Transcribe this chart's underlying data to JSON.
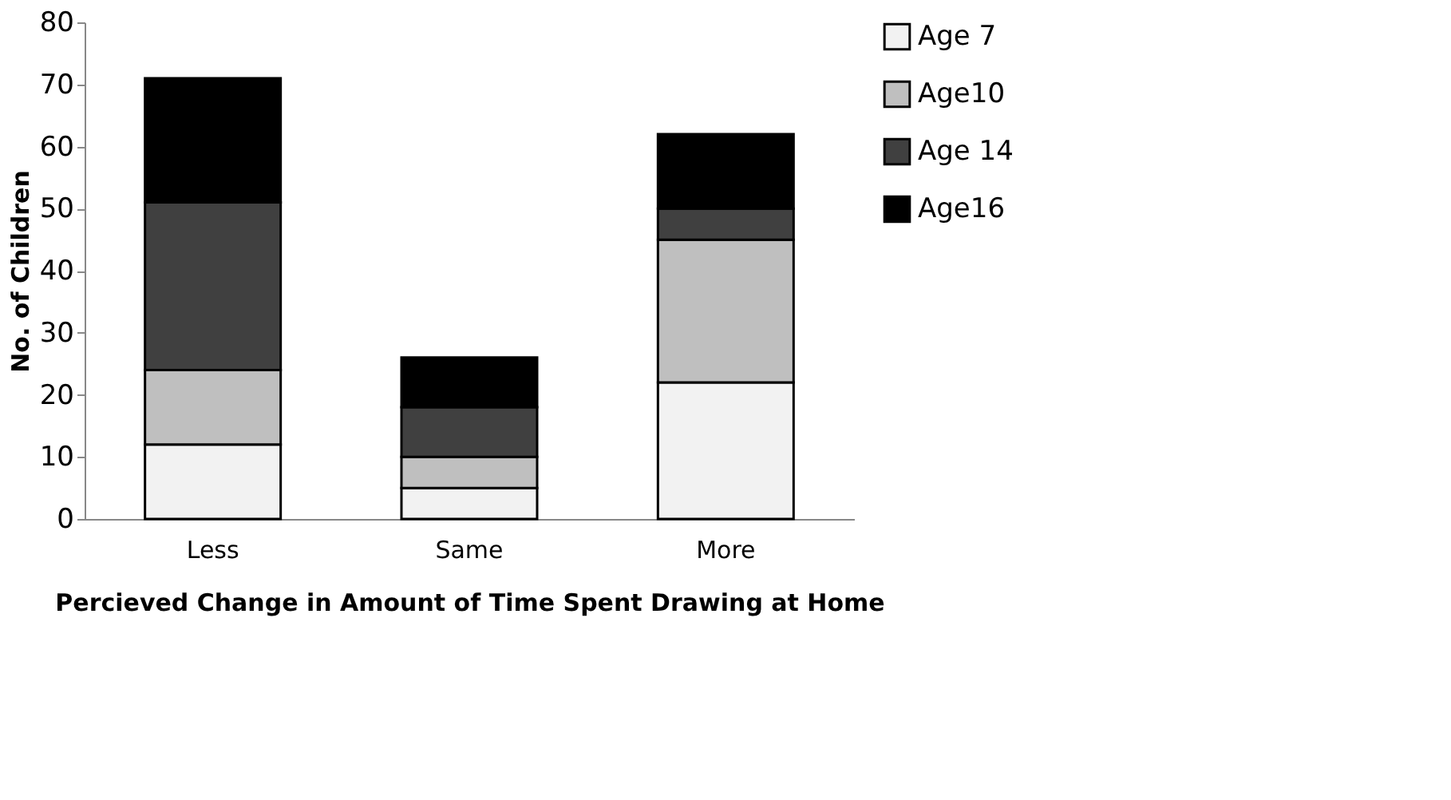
{
  "chart_data": {
    "type": "bar",
    "stacked": true,
    "xlabel": "Percieved Change in Amount of Time Spent Drawing at Home",
    "ylabel": "No. of Children",
    "categories": [
      "Less",
      "Same",
      "More"
    ],
    "series": [
      {
        "name": "Age 7",
        "color": "#f2f2f2",
        "values": [
          12,
          5,
          22
        ]
      },
      {
        "name": "Age10",
        "color": "#bfbfbf",
        "values": [
          12,
          5,
          23
        ]
      },
      {
        "name": "Age 14",
        "color": "#404040",
        "values": [
          27,
          8,
          5
        ]
      },
      {
        "name": "Age16",
        "color": "#000000",
        "values": [
          20,
          8,
          12
        ]
      }
    ],
    "ylim": [
      0,
      80
    ],
    "yticks": [
      0,
      10,
      20,
      30,
      40,
      50,
      60,
      70,
      80
    ],
    "grid": false,
    "legend": "right"
  }
}
